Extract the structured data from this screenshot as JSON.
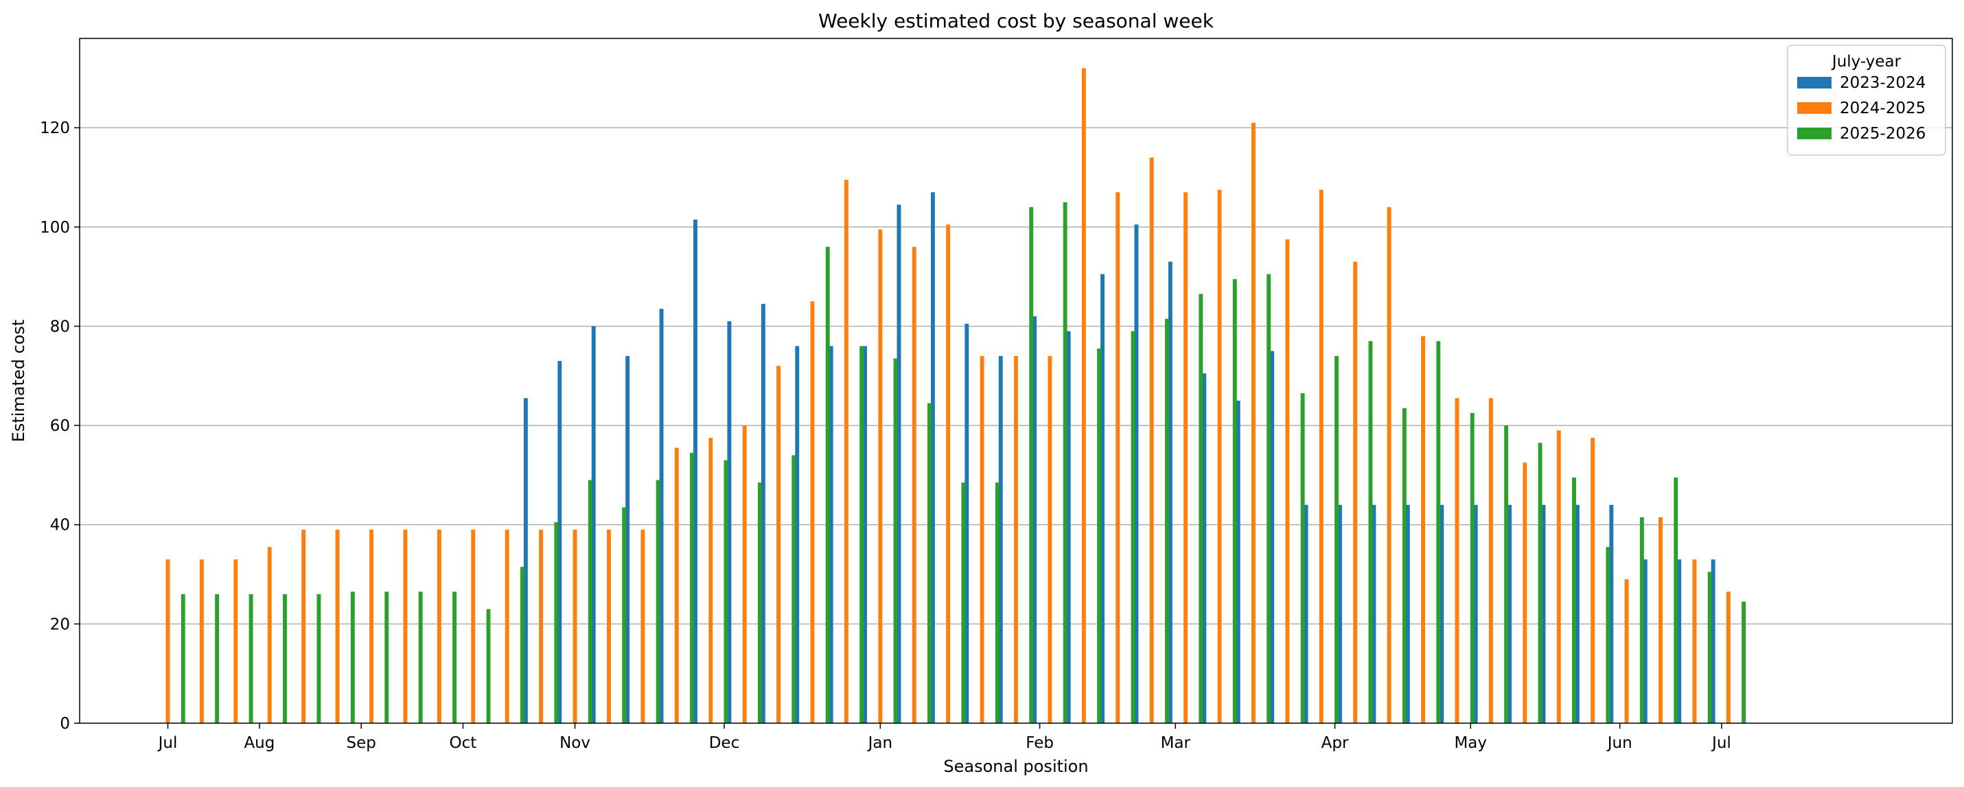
{
  "chart_data": {
    "type": "bar",
    "title": "Weekly estimated cost by seasonal week",
    "xlabel": "Seasonal position",
    "ylabel": "Estimated cost",
    "ylim": [
      0,
      138
    ],
    "yticks": [
      0,
      20,
      40,
      60,
      80,
      100,
      120
    ],
    "xlim": [
      -2.6,
      52.6
    ],
    "xticks": [
      {
        "pos": 0,
        "label": "Jul"
      },
      {
        "pos": 2.7,
        "label": "Aug"
      },
      {
        "pos": 5.7,
        "label": "Sep"
      },
      {
        "pos": 8.7,
        "label": "Oct"
      },
      {
        "pos": 12.0,
        "label": "Nov"
      },
      {
        "pos": 16.4,
        "label": "Dec"
      },
      {
        "pos": 21.0,
        "label": "Jan"
      },
      {
        "pos": 25.7,
        "label": "Feb"
      },
      {
        "pos": 29.7,
        "label": "Mar"
      },
      {
        "pos": 34.4,
        "label": "Apr"
      },
      {
        "pos": 38.4,
        "label": "May"
      },
      {
        "pos": 42.8,
        "label": "Jun"
      },
      {
        "pos": 45.8,
        "label": "Jul"
      }
    ],
    "grid": "y",
    "legend": {
      "title": "July-year",
      "position": "top-right"
    },
    "series": [
      {
        "name": "2023-2024",
        "color": "#1f77b4",
        "offset": -0.45,
        "x": [
          11,
          12,
          13,
          14,
          15,
          16,
          17,
          18,
          19,
          20,
          21,
          22,
          23,
          24,
          25,
          26,
          27,
          28,
          29,
          30,
          31,
          32,
          33,
          34,
          35,
          36,
          37,
          38,
          39,
          40,
          41,
          42,
          43,
          44,
          45,
          46
        ],
        "values": [
          65.5,
          73,
          80,
          74,
          83.5,
          101.5,
          81,
          84.5,
          76,
          76,
          76,
          104.5,
          107,
          80.5,
          74,
          82,
          79,
          90.5,
          100.5,
          93,
          70.5,
          65,
          75,
          44,
          44,
          44,
          44,
          44,
          44,
          44,
          44,
          44,
          44,
          33,
          33,
          33
        ]
      },
      {
        "name": "2024-2025",
        "color": "#ff7f0e",
        "offset": 0,
        "x": [
          0,
          1,
          2,
          3,
          4,
          5,
          6,
          7,
          8,
          9,
          10,
          11,
          12,
          13,
          14,
          15,
          16,
          17,
          18,
          19,
          20,
          21,
          22,
          23,
          24,
          25,
          26,
          27,
          28,
          29,
          30,
          31,
          32,
          33,
          34,
          35,
          36,
          37,
          38,
          39,
          40,
          41,
          42,
          43,
          44,
          45,
          46
        ],
        "values": [
          33,
          33,
          33,
          35.5,
          39,
          39,
          39,
          39,
          39,
          39,
          39,
          39,
          39,
          39,
          39,
          55.5,
          57.5,
          60,
          72,
          85,
          109.5,
          99.5,
          96,
          100.5,
          74,
          74,
          74,
          132,
          107,
          114,
          107,
          107.5,
          121,
          97.5,
          107.5,
          93,
          104,
          78,
          65.5,
          65.5,
          52.5,
          59,
          57.5,
          29,
          41.5,
          33,
          26.5
        ]
      },
      {
        "name": "2025-2026",
        "color": "#2ca02c",
        "offset": 0.45,
        "x": [
          0,
          1,
          2,
          3,
          4,
          5,
          6,
          7,
          8,
          9,
          10,
          11,
          12,
          13,
          14,
          15,
          16,
          17,
          18,
          19,
          20,
          21,
          22,
          23,
          24,
          25,
          26,
          27,
          28,
          29,
          30,
          31,
          32,
          33,
          34,
          35,
          36,
          37,
          38,
          39,
          40,
          41,
          42,
          43,
          44,
          45,
          46
        ],
        "values": [
          26,
          26,
          26,
          26,
          26,
          26.5,
          26.5,
          26.5,
          26.5,
          23,
          31.5,
          40.5,
          49,
          43.5,
          49,
          54.5,
          53,
          48.5,
          54,
          96,
          76,
          73.5,
          64.5,
          48.5,
          48.5,
          104,
          105,
          75.5,
          79,
          81.5,
          86.5,
          89.5,
          90.5,
          66.5,
          74,
          77,
          63.5,
          77,
          62.5,
          60,
          56.5,
          49.5,
          35.5,
          41.5,
          49.5,
          30.5,
          24.5
        ]
      }
    ]
  }
}
